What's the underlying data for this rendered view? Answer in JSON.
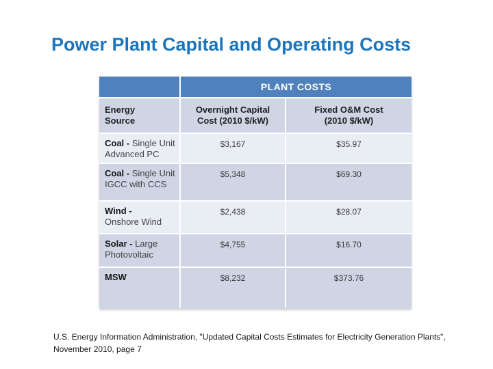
{
  "slide": {
    "title": "Power Plant Capital and Operating Costs",
    "citation": "U.S. Energy Information Administration, \"Updated Capital Costs Estimates for Electricity Generation Plants\",\nNovember 2010, page 7"
  },
  "colors": {
    "title_blue": "#1c75bc",
    "header_blue": "#4f81bd",
    "band_dark": "#cfd5e4",
    "band_light": "#e9edf4"
  },
  "table": {
    "banner": "PLANT COSTS",
    "headers": {
      "energy_source": "Energy\nSource",
      "capital": "Overnight Capital\nCost (2010 $/kW)",
      "om": "Fixed O&M Cost\n(2010 $/kW)"
    },
    "rows": [
      {
        "source_bold": "Coal -",
        "source_rest": " Single Unit\nAdvanced PC",
        "capital": "$3,167",
        "om": "$35.97"
      },
      {
        "source_bold": "Coal -",
        "source_rest": " Single Unit\nIGCC with CCS",
        "capital": "$5,348",
        "om": "$69.30"
      },
      {
        "source_bold": "Wind -",
        "source_rest": "\nOnshore Wind",
        "capital": "$2,438",
        "om": "$28.07"
      },
      {
        "source_bold": "Solar -",
        "source_rest": " Large\nPhotovoltaic",
        "capital": "$4,755",
        "om": "$16.70"
      },
      {
        "source_bold": "MSW",
        "source_rest": "",
        "capital": "$8,232",
        "om": "$373.76"
      }
    ]
  }
}
